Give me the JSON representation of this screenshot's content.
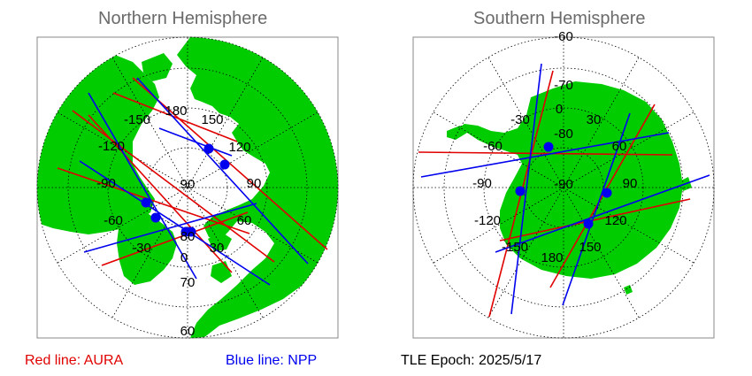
{
  "north": {
    "title": "Northern Hemisphere",
    "lon_labels": [
      "180",
      "150",
      "120",
      "90",
      "60",
      "30",
      "0",
      "-30",
      "-60",
      "-90",
      "-120",
      "-150"
    ],
    "lat_labels": [
      "90",
      "80",
      "70",
      "60"
    ]
  },
  "south": {
    "title": "Southern Hemisphere",
    "lon_labels": [
      "0",
      "30",
      "60",
      "90",
      "120",
      "150",
      "180",
      "-150",
      "-120",
      "-90",
      "-60",
      "-30"
    ],
    "lat_labels": [
      "-90",
      "-80",
      "-70",
      "-60"
    ]
  },
  "legend": {
    "red_label": "Red line: AURA",
    "blue_label": "Blue line: NPP",
    "tle_label": "TLE Epoch: 2025/5/17"
  },
  "colors": {
    "land": "#00cc00",
    "ocean": "#ffffff",
    "aura": "#e00000",
    "npp": "#0000ee",
    "title": "#6b6b6b"
  }
}
